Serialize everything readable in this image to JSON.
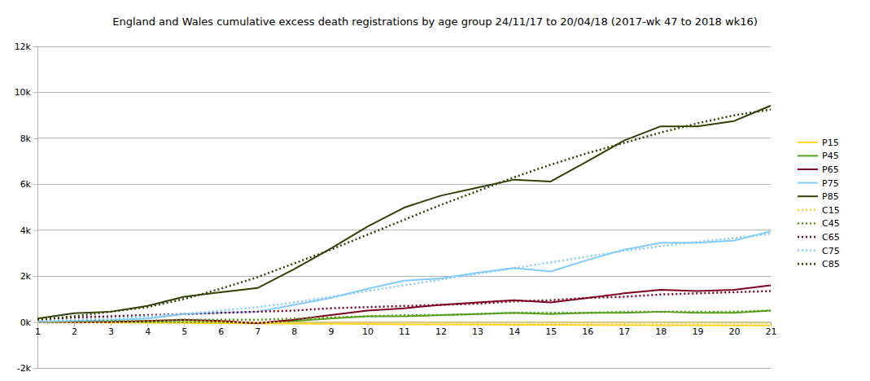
{
  "chart_data": {
    "type": "line",
    "title": "England and Wales cumulative excess death registrations by age group 24/11/17 to 20/04/18 (2017-wk 47 to 2018 wk16)",
    "x": [
      1,
      2,
      3,
      4,
      5,
      6,
      7,
      8,
      9,
      10,
      11,
      12,
      13,
      14,
      15,
      16,
      17,
      18,
      19,
      20,
      21
    ],
    "xlim": [
      1,
      21
    ],
    "xticks": [
      1,
      2,
      3,
      4,
      5,
      6,
      7,
      8,
      9,
      10,
      11,
      12,
      13,
      14,
      15,
      16,
      17,
      18,
      19,
      20,
      21
    ],
    "ylim": [
      -2000,
      12000
    ],
    "yticks": [
      {
        "value": -2000,
        "label": "-2k"
      },
      {
        "value": 0,
        "label": "0k"
      },
      {
        "value": 2000,
        "label": "2k"
      },
      {
        "value": 4000,
        "label": "4k"
      },
      {
        "value": 6000,
        "label": "6k"
      },
      {
        "value": 8000,
        "label": "8k"
      },
      {
        "value": 10000,
        "label": "10k"
      },
      {
        "value": 12000,
        "label": "12k"
      }
    ],
    "grid": true,
    "legend": "right",
    "series": [
      {
        "name": "P15",
        "color": "#ffd320",
        "line_style": "solid",
        "values": [
          0,
          -10,
          -20,
          -30,
          -40,
          -50,
          -60,
          -70,
          -80,
          -90,
          -100,
          -100,
          -110,
          -120,
          -120,
          -130,
          -130,
          -140,
          -140,
          -150,
          -150
        ]
      },
      {
        "name": "P45",
        "color": "#579d1c",
        "line_style": "solid",
        "values": [
          0,
          0,
          0,
          0,
          0,
          0,
          -50,
          50,
          150,
          250,
          250,
          300,
          350,
          400,
          350,
          400,
          400,
          450,
          400,
          400,
          500
        ]
      },
      {
        "name": "P65",
        "color": "#7e0021",
        "line_style": "solid",
        "values": [
          0,
          0,
          0,
          50,
          100,
          50,
          -50,
          100,
          300,
          500,
          600,
          750,
          850,
          950,
          850,
          1050,
          1250,
          1400,
          1350,
          1400,
          1600
        ]
      },
      {
        "name": "P75",
        "color": "#83caff",
        "line_style": "solid",
        "values": [
          0,
          50,
          80,
          150,
          350,
          400,
          450,
          750,
          1050,
          1450,
          1800,
          1900,
          2150,
          2350,
          2200,
          2700,
          3150,
          3450,
          3450,
          3550,
          3950
        ]
      },
      {
        "name": "P85",
        "color": "#314004",
        "line_style": "solid",
        "values": [
          150,
          380,
          450,
          700,
          1100,
          1300,
          1480,
          2300,
          3200,
          4150,
          4980,
          5500,
          5850,
          6200,
          6120,
          7000,
          7900,
          8520,
          8520,
          8750,
          9420
        ]
      },
      {
        "name": "C15",
        "color": "#ffd320",
        "line_style": "dotted",
        "values": [
          0,
          0,
          -10,
          -10,
          -10,
          -10,
          -20,
          -20,
          -20,
          -20,
          -20,
          -30,
          -30,
          -30,
          -30,
          -30,
          -30,
          -40,
          -40,
          -40,
          -40
        ]
      },
      {
        "name": "C45",
        "color": "#579d1c",
        "line_style": "dotted",
        "values": [
          50,
          50,
          50,
          50,
          100,
          100,
          100,
          150,
          200,
          250,
          300,
          300,
          350,
          400,
          400,
          400,
          450,
          450,
          450,
          450,
          500
        ]
      },
      {
        "name": "C65",
        "color": "#7e0021",
        "line_style": "dotted",
        "values": [
          100,
          200,
          250,
          300,
          350,
          400,
          450,
          500,
          600,
          650,
          700,
          750,
          800,
          900,
          950,
          1050,
          1100,
          1200,
          1250,
          1300,
          1350
        ]
      },
      {
        "name": "C75",
        "color": "#83caff",
        "line_style": "dotted",
        "values": [
          50,
          100,
          150,
          250,
          350,
          500,
          650,
          850,
          1100,
          1350,
          1600,
          1850,
          2100,
          2350,
          2600,
          2850,
          3100,
          3300,
          3500,
          3650,
          3850
        ]
      },
      {
        "name": "C85",
        "color": "#314004",
        "line_style": "dotted",
        "values": [
          100,
          250,
          450,
          650,
          1000,
          1450,
          1950,
          2550,
          3150,
          3800,
          4450,
          5100,
          5700,
          6300,
          6850,
          7350,
          7800,
          8250,
          8650,
          9000,
          9250
        ]
      }
    ]
  }
}
